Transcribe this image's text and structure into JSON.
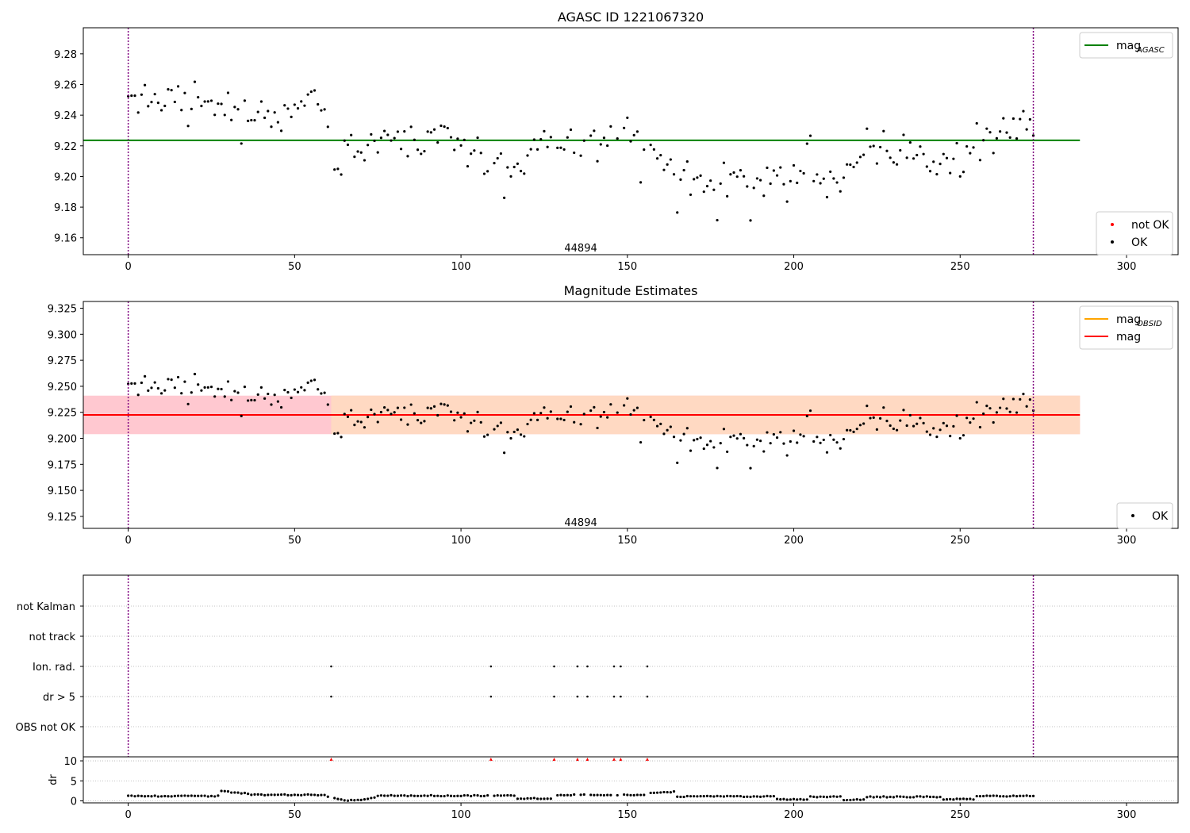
{
  "chart_data": [
    {
      "type": "scatter",
      "title": "AGASC ID 1221067320",
      "xlim": [
        -13.5,
        315.5
      ],
      "ylim": [
        9.149,
        9.297
      ],
      "x_ticks": [
        0,
        50,
        100,
        150,
        200,
        250,
        300
      ],
      "y_ticks": [
        9.16,
        9.18,
        9.2,
        9.22,
        9.24,
        9.26,
        9.28
      ],
      "y_decimals": 2,
      "grid": false,
      "legend_upper": {
        "position": "top-right",
        "entries": [
          {
            "base": "mag",
            "sub": "AGASC",
            "color": "#008000",
            "kind": "line"
          }
        ]
      },
      "legend_lower": {
        "position": "bottom-right",
        "entries": [
          {
            "label": "not OK",
            "color": "#ff0000",
            "kind": "dot"
          },
          {
            "label": "OK",
            "color": "#000000",
            "kind": "dot"
          }
        ]
      },
      "hlines": [
        {
          "y": 9.2236,
          "x_range": [
            -13.5,
            286
          ],
          "color": "#008000"
        }
      ],
      "vlines": [
        {
          "x": 0,
          "color": "#800080",
          "style": "dotted"
        },
        {
          "x": 272,
          "color": "#800080",
          "style": "dotted"
        }
      ],
      "annotations": [
        {
          "text": "44894",
          "x": 136,
          "y": 9.151
        }
      ],
      "series": [
        {
          "name": "OK",
          "color": "#000000"
        }
      ]
    },
    {
      "type": "scatter",
      "title": "Magnitude Estimates",
      "xlim": [
        -13.5,
        315.5
      ],
      "ylim": [
        9.1135,
        9.3315
      ],
      "x_ticks": [
        0,
        50,
        100,
        150,
        200,
        250,
        300
      ],
      "y_ticks": [
        9.125,
        9.15,
        9.175,
        9.2,
        9.225,
        9.25,
        9.275,
        9.3,
        9.325
      ],
      "y_decimals": 3,
      "grid": false,
      "legend_upper": {
        "position": "top-right",
        "entries": [
          {
            "base": "mag",
            "sub": "OBSID",
            "color": "#ffa500",
            "kind": "line"
          },
          {
            "base": "mag",
            "sub": "",
            "color": "#ff0000",
            "kind": "line"
          }
        ]
      },
      "legend_lower": {
        "position": "bottom-right",
        "entries": [
          {
            "label": "OK",
            "color": "#000000",
            "kind": "dot"
          }
        ]
      },
      "bands": [
        {
          "y_range": [
            9.204,
            9.241
          ],
          "x_range": [
            -13.5,
            286
          ],
          "color": "#ffc8d0"
        },
        {
          "y_range": [
            9.204,
            9.241
          ],
          "x_range": [
            61,
            286
          ],
          "color": "#ffd9c2"
        }
      ],
      "hlines": [
        {
          "y": 9.2225,
          "x_range": [
            -13.5,
            286
          ],
          "color": "#ff0000"
        }
      ],
      "vlines": [
        {
          "x": 0,
          "color": "#800080",
          "style": "dotted"
        },
        {
          "x": 272,
          "color": "#800080",
          "style": "dotted"
        }
      ],
      "annotations": [
        {
          "text": "44894",
          "x": 136,
          "y": 9.1158
        }
      ],
      "series": [
        {
          "name": "OK",
          "color": "#000000"
        }
      ]
    },
    {
      "type": "scatter",
      "xlim": [
        -13.5,
        315.5
      ],
      "categories": [
        "not Kalman",
        "not track",
        "Ion. rad.",
        "dr > 5",
        "OBS not OK"
      ],
      "flag_x": [
        61,
        109,
        128,
        135,
        138,
        146,
        148,
        156
      ],
      "flags": {
        "not Kalman": [],
        "not track": [],
        "Ion. rad.": [
          61,
          109,
          128,
          135,
          138,
          146,
          148,
          156
        ],
        "dr > 5": [
          61,
          109,
          128,
          135,
          138,
          146,
          148,
          156
        ],
        "OBS not OK": []
      },
      "vlines": [
        {
          "x": 0,
          "color": "#800080",
          "style": "dotted"
        },
        {
          "x": 272,
          "color": "#800080",
          "style": "dotted"
        }
      ]
    },
    {
      "type": "scatter",
      "ylabel": "dr",
      "xlim": [
        -13.5,
        315.5
      ],
      "ylim": [
        -0.5,
        11
      ],
      "x_ticks": [
        0,
        50,
        100,
        150,
        200,
        250,
        300
      ],
      "y_ticks": [
        0,
        5,
        10
      ],
      "clipped_markers": {
        "x": [
          61,
          109,
          128,
          135,
          138,
          146,
          148,
          156
        ],
        "y": 10,
        "color": "#ff0000"
      },
      "series": [
        {
          "name": "OK",
          "color": "#000000"
        }
      ]
    }
  ]
}
